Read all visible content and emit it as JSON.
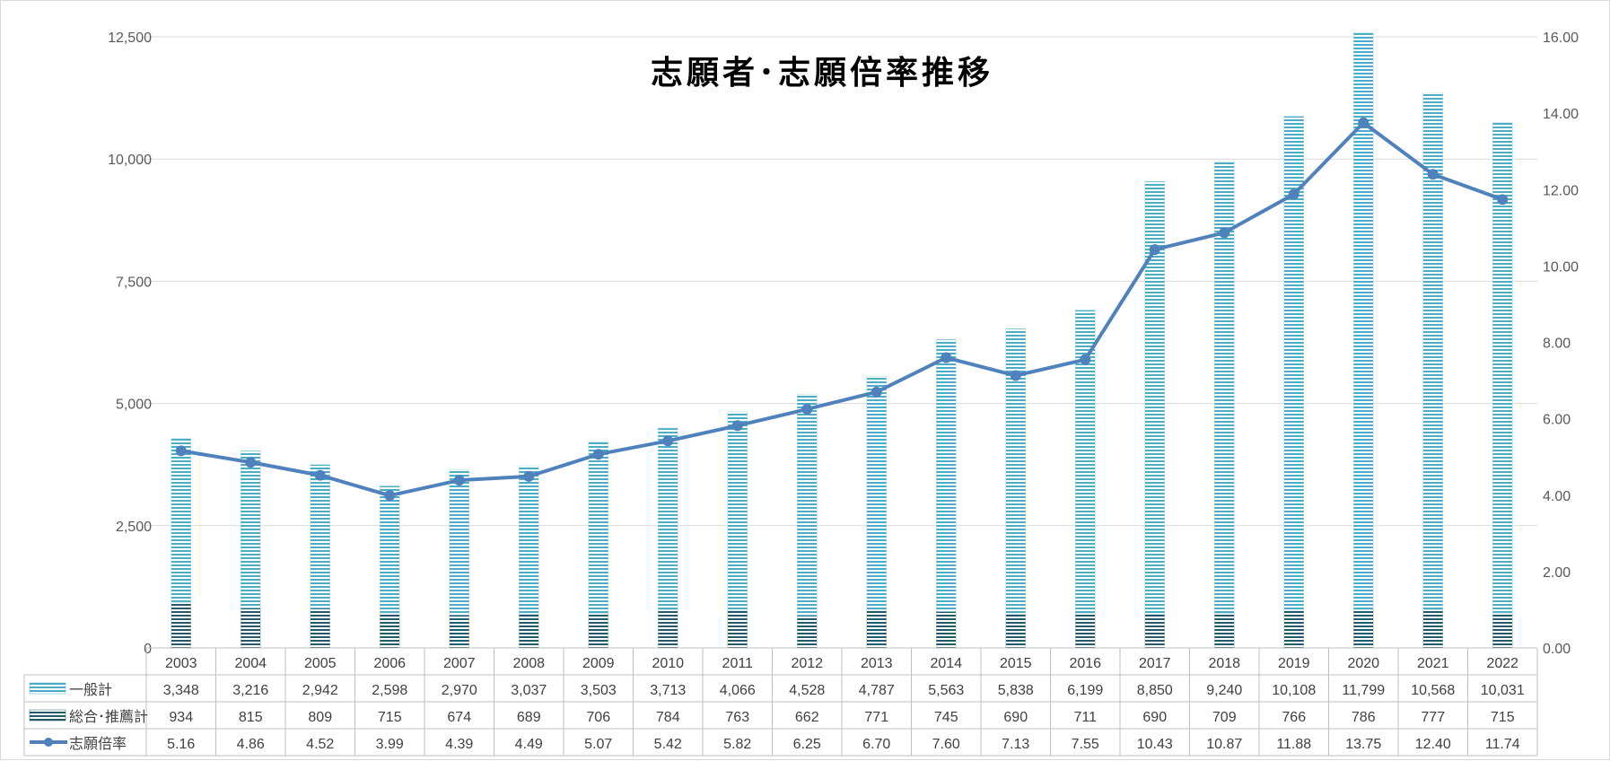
{
  "chart_data": {
    "type": "bar",
    "title": "志願者･志願倍率推移",
    "categories": [
      "2003",
      "2004",
      "2005",
      "2006",
      "2007",
      "2008",
      "2009",
      "2010",
      "2011",
      "2012",
      "2013",
      "2014",
      "2015",
      "2016",
      "2017",
      "2018",
      "2019",
      "2020",
      "2021",
      "2022"
    ],
    "series": [
      {
        "name": "一般計",
        "kind": "stacked-bar",
        "axis": "left",
        "color": "#4BACC6",
        "values": [
          3348,
          3216,
          2942,
          2598,
          2970,
          3037,
          3503,
          3713,
          4066,
          4528,
          4787,
          5563,
          5838,
          6199,
          8850,
          9240,
          10108,
          11799,
          10568,
          10031
        ],
        "labels": [
          "3,348",
          "3,216",
          "2,942",
          "2,598",
          "2,970",
          "3,037",
          "3,503",
          "3,713",
          "4,066",
          "4,528",
          "4,787",
          "5,563",
          "5,838",
          "6,199",
          "8,850",
          "9,240",
          "10,108",
          "11,799",
          "10,568",
          "10,031"
        ]
      },
      {
        "name": "総合･推薦計",
        "kind": "stacked-bar",
        "axis": "left",
        "color": "#215967",
        "values": [
          934,
          815,
          809,
          715,
          674,
          689,
          706,
          784,
          763,
          662,
          771,
          745,
          690,
          711,
          690,
          709,
          766,
          786,
          777,
          715
        ],
        "labels": [
          "934",
          "815",
          "809",
          "715",
          "674",
          "689",
          "706",
          "784",
          "763",
          "662",
          "771",
          "745",
          "690",
          "711",
          "690",
          "709",
          "766",
          "786",
          "777",
          "715"
        ]
      },
      {
        "name": "志願倍率",
        "kind": "line",
        "axis": "right",
        "color": "#4F81BD",
        "values": [
          5.16,
          4.86,
          4.52,
          3.99,
          4.39,
          4.49,
          5.07,
          5.42,
          5.82,
          6.25,
          6.7,
          7.6,
          7.13,
          7.55,
          10.43,
          10.87,
          11.88,
          13.75,
          12.4,
          11.74
        ],
        "labels": [
          "5.16",
          "4.86",
          "4.52",
          "3.99",
          "4.39",
          "4.49",
          "5.07",
          "5.42",
          "5.82",
          "6.25",
          "6.70",
          "7.60",
          "7.13",
          "7.55",
          "10.43",
          "10.87",
          "11.88",
          "13.75",
          "12.40",
          "11.74"
        ]
      }
    ],
    "y_left": {
      "ylim": [
        0,
        12500
      ],
      "ticks": [
        "0",
        "2,500",
        "5,000",
        "7,500",
        "10,000",
        "12,500"
      ]
    },
    "y_right": {
      "ylim": [
        0,
        16
      ],
      "ticks": [
        "0.00",
        "2.00",
        "4.00",
        "6.00",
        "8.00",
        "10.00",
        "12.00",
        "14.00",
        "16.00"
      ]
    },
    "grid": true,
    "legend": "data-table"
  }
}
